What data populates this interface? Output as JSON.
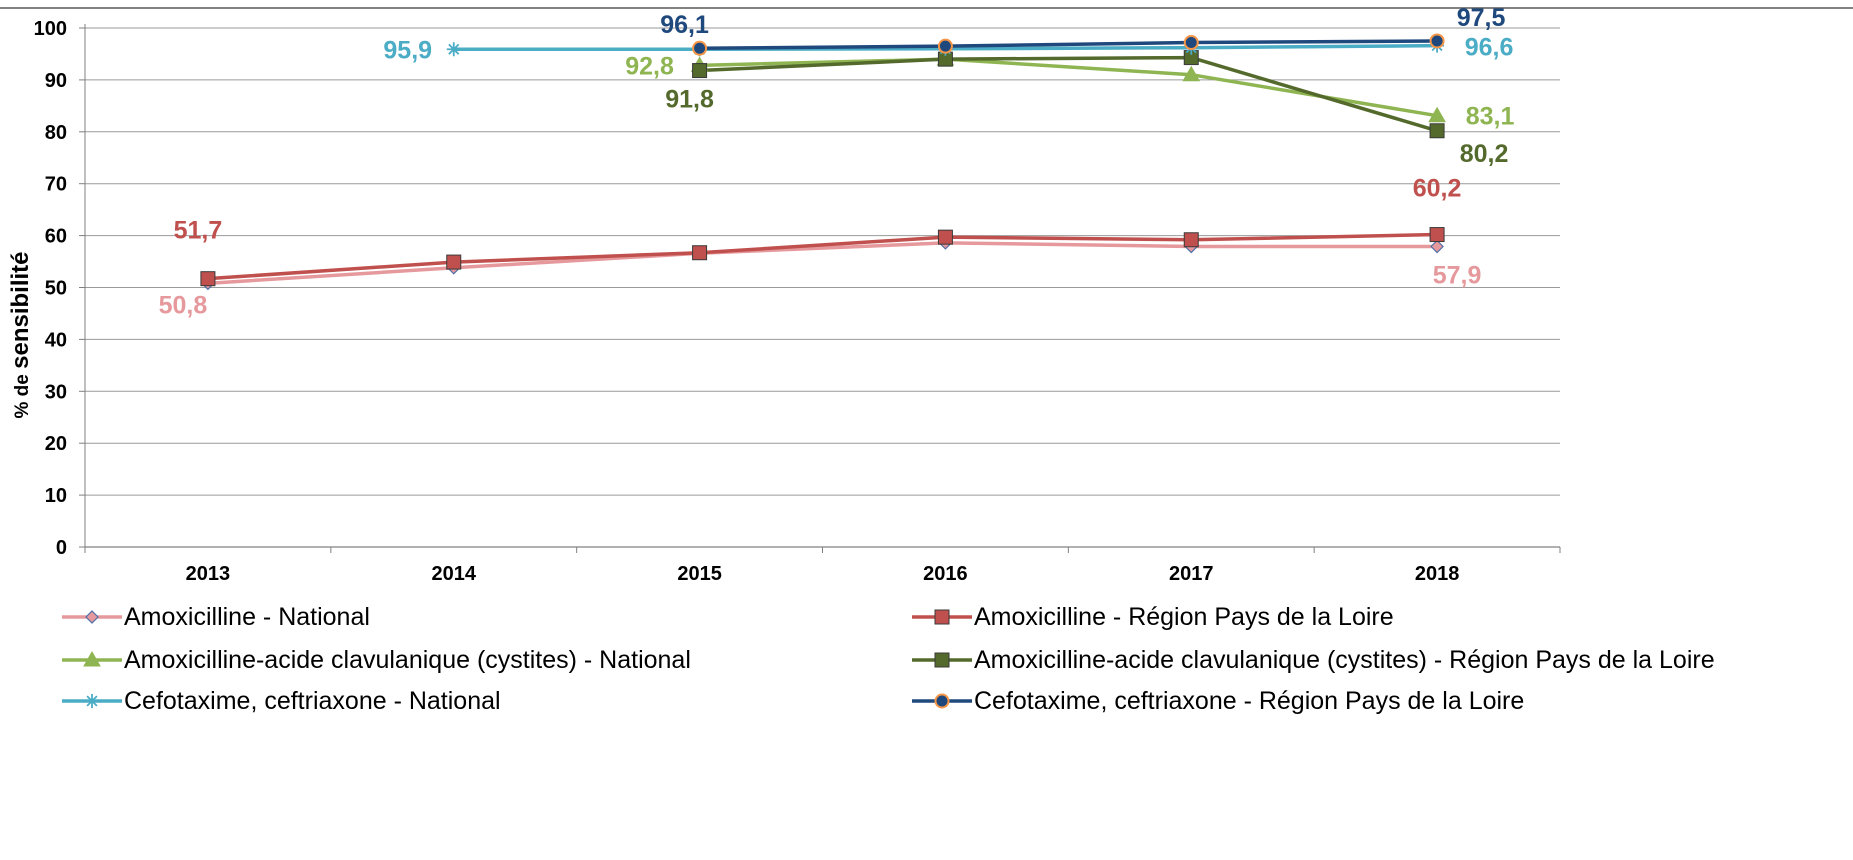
{
  "chart_data": {
    "type": "line",
    "title": "",
    "xlabel": "",
    "ylabel_prefix": "% de",
    "ylabel_main": "sensibilité",
    "ylim": [
      0,
      100
    ],
    "yticks": [
      "0",
      "10",
      "20",
      "30",
      "40",
      "50",
      "60",
      "70",
      "80",
      "90",
      "100"
    ],
    "grid": true,
    "legend_position": "bottom",
    "categories": [
      "2013",
      "2014",
      "2015",
      "2016",
      "2017",
      "2018"
    ],
    "series": [
      {
        "name": "Amoxicilline - National",
        "color": "#E6999C",
        "marker": "diamond",
        "values": [
          50.8,
          53.8,
          56.6,
          58.6,
          57.9,
          57.9
        ],
        "labels": [
          "50,8",
          "",
          "",
          "",
          "",
          "57,9"
        ]
      },
      {
        "name": "Amoxicilline - Région Pays de la Loire",
        "color": "#C0504D",
        "marker": "square",
        "values": [
          51.7,
          54.9,
          56.7,
          59.7,
          59.2,
          60.2
        ],
        "labels": [
          "51,7",
          "",
          "",
          "",
          "",
          "60,2"
        ]
      },
      {
        "name": "Amoxicilline-acide clavulanique (cystites) - National",
        "color": "#8FB552",
        "marker": "triangle",
        "values": [
          null,
          null,
          92.8,
          94.0,
          91.0,
          83.1
        ],
        "labels": [
          "",
          "",
          "92,8",
          "",
          "",
          "83,1"
        ]
      },
      {
        "name": "Amoxicilline-acide clavulanique (cystites) - Région Pays de la Loire",
        "color": "#546A2C",
        "marker": "square",
        "values": [
          null,
          null,
          91.8,
          94.0,
          94.3,
          80.2
        ],
        "labels": [
          "",
          "",
          "91,8",
          "",
          "",
          "80,2"
        ]
      },
      {
        "name": "Cefotaxime, ceftriaxone - National",
        "color": "#4BACC6",
        "marker": "star",
        "values": [
          null,
          95.9,
          95.9,
          96.0,
          96.2,
          96.6
        ],
        "labels": [
          "",
          "95,9",
          "",
          "",
          "",
          "96,6"
        ]
      },
      {
        "name": "Cefotaxime, ceftriaxone - Région Pays de la Loire",
        "color": "#1F497D",
        "marker": "circle",
        "values": [
          null,
          null,
          96.1,
          96.5,
          97.2,
          97.5
        ],
        "labels": [
          "",
          "",
          "96,1",
          "",
          "",
          "97,5"
        ]
      }
    ]
  }
}
